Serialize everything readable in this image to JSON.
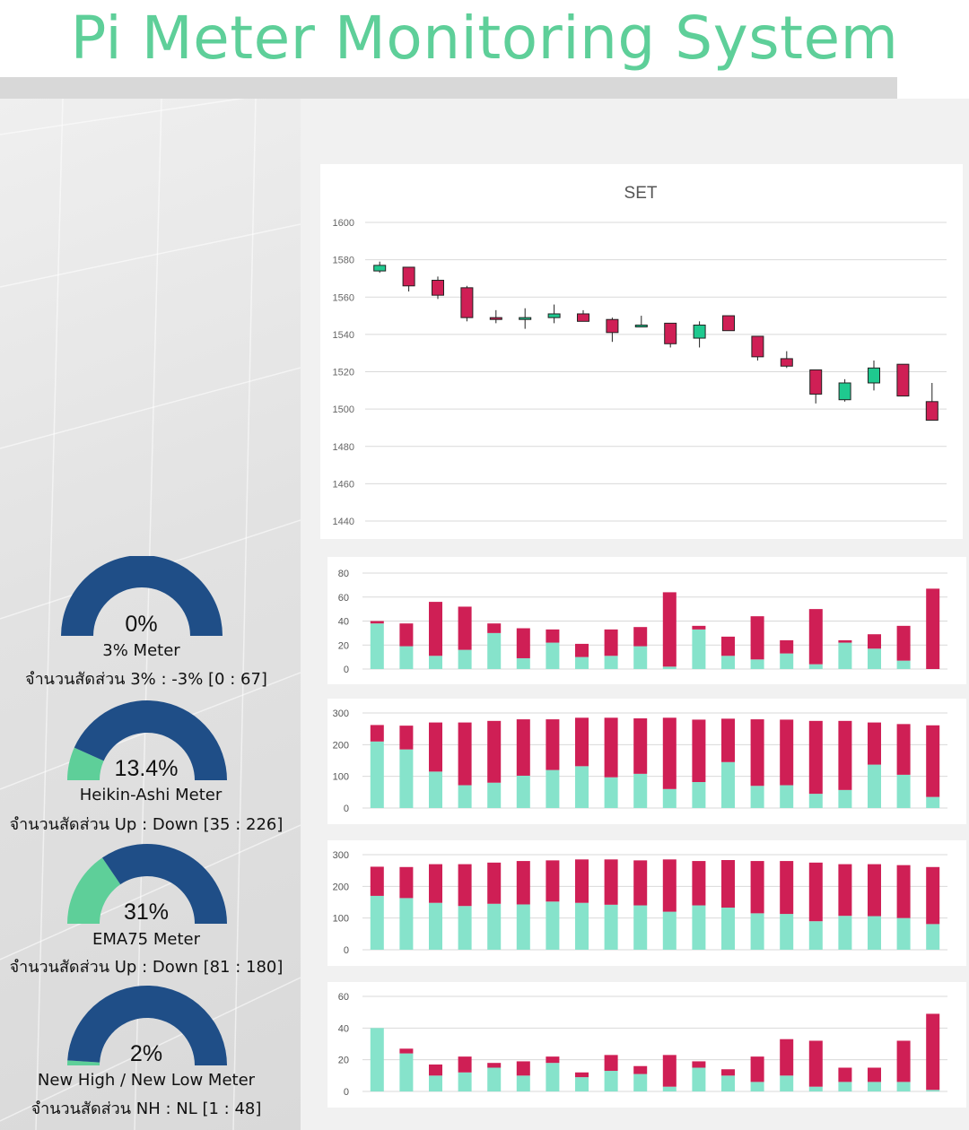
{
  "title": "Pi Meter Monitoring System",
  "colors": {
    "title": "#5ecf99",
    "up": "#1fc98f",
    "down": "#cf1f55",
    "bar_up": "#86e3cb",
    "bar_down": "#cf1f55",
    "gauge_main": "#1f4e87",
    "gauge_fill": "#5ecf99"
  },
  "gauges": [
    {
      "percent": "0%",
      "value": 0.0,
      "name": "3% Meter",
      "ratio": "จำนวนสัดส่วน 3% : -3% [0 : 67]"
    },
    {
      "percent": "13.4%",
      "value": 0.134,
      "name": "Heikin-Ashi Meter",
      "ratio": "จำนวนสัดส่วน Up : Down [35 : 226]"
    },
    {
      "percent": "31%",
      "value": 0.31,
      "name": "EMA75 Meter",
      "ratio": "จำนวนสัดส่วน Up : Down [81 : 180]"
    },
    {
      "percent": "2%",
      "value": 0.02,
      "name": "New High / New Low Meter",
      "ratio": "จำนวนสัดส่วน NH : NL [1 : 48]"
    }
  ],
  "chart_data": [
    {
      "type": "candlestick",
      "title": "SET",
      "ylim": [
        1440,
        1600
      ],
      "yticks": [
        1440,
        1460,
        1480,
        1500,
        1520,
        1540,
        1560,
        1580,
        1600
      ],
      "grid": true,
      "candles": [
        {
          "open": 1574,
          "close": 1577,
          "high": 1579,
          "low": 1573
        },
        {
          "open": 1576,
          "close": 1566,
          "high": 1576,
          "low": 1563
        },
        {
          "open": 1569,
          "close": 1561,
          "high": 1571,
          "low": 1559
        },
        {
          "open": 1565,
          "close": 1549,
          "high": 1566,
          "low": 1547
        },
        {
          "open": 1549,
          "close": 1548,
          "high": 1553,
          "low": 1546
        },
        {
          "open": 1548,
          "close": 1549,
          "high": 1554,
          "low": 1543
        },
        {
          "open": 1549,
          "close": 1551,
          "high": 1556,
          "low": 1546
        },
        {
          "open": 1551,
          "close": 1547,
          "high": 1553,
          "low": 1547
        },
        {
          "open": 1548,
          "close": 1541,
          "high": 1549,
          "low": 1536
        },
        {
          "open": 1544,
          "close": 1545,
          "high": 1550,
          "low": 1544
        },
        {
          "open": 1546,
          "close": 1535,
          "high": 1546,
          "low": 1533
        },
        {
          "open": 1538,
          "close": 1545,
          "high": 1547,
          "low": 1533
        },
        {
          "open": 1550,
          "close": 1542,
          "high": 1550,
          "low": 1542
        },
        {
          "open": 1539,
          "close": 1528,
          "high": 1539,
          "low": 1526
        },
        {
          "open": 1527,
          "close": 1523,
          "high": 1531,
          "low": 1522
        },
        {
          "open": 1521,
          "close": 1508,
          "high": 1521,
          "low": 1503
        },
        {
          "open": 1505,
          "close": 1514,
          "high": 1516,
          "low": 1504
        },
        {
          "open": 1514,
          "close": 1522,
          "high": 1526,
          "low": 1510
        },
        {
          "open": 1524,
          "close": 1507,
          "high": 1524,
          "low": 1507
        },
        {
          "open": 1504,
          "close": 1494,
          "high": 1514,
          "low": 1494
        }
      ]
    },
    {
      "type": "bar",
      "stacked": true,
      "ylim": [
        0,
        80
      ],
      "yticks": [
        0,
        20,
        40,
        60,
        80
      ],
      "grid": true,
      "series": [
        {
          "values": [
            38,
            19,
            11,
            16,
            30,
            9,
            22,
            10,
            11,
            19,
            2,
            33,
            11,
            8,
            13,
            4,
            22,
            17,
            7,
            0
          ]
        },
        {
          "values": [
            2,
            19,
            45,
            36,
            8,
            25,
            11,
            11,
            22,
            16,
            62,
            3,
            16,
            36,
            11,
            46,
            2,
            12,
            29,
            67
          ]
        }
      ]
    },
    {
      "type": "bar",
      "stacked": true,
      "ylim": [
        0,
        300
      ],
      "yticks": [
        0,
        100,
        200,
        300
      ],
      "grid": true,
      "series": [
        {
          "values": [
            210,
            185,
            115,
            72,
            80,
            102,
            120,
            132,
            97,
            108,
            60,
            82,
            145,
            70,
            72,
            45,
            57,
            137,
            105,
            35
          ]
        },
        {
          "values": [
            52,
            75,
            155,
            198,
            195,
            178,
            160,
            153,
            188,
            175,
            225,
            197,
            137,
            210,
            207,
            230,
            218,
            133,
            160,
            226
          ]
        }
      ]
    },
    {
      "type": "bar",
      "stacked": true,
      "ylim": [
        0,
        300
      ],
      "yticks": [
        0,
        100,
        200,
        300
      ],
      "grid": true,
      "series": [
        {
          "values": [
            170,
            163,
            148,
            138,
            145,
            143,
            152,
            148,
            142,
            140,
            120,
            140,
            133,
            115,
            113,
            90,
            107,
            106,
            100,
            81
          ]
        },
        {
          "values": [
            92,
            98,
            122,
            132,
            130,
            137,
            130,
            137,
            143,
            142,
            165,
            140,
            150,
            165,
            167,
            185,
            163,
            164,
            167,
            180
          ]
        }
      ]
    },
    {
      "type": "bar",
      "stacked": true,
      "ylim": [
        0,
        60
      ],
      "yticks": [
        0,
        20,
        40,
        60
      ],
      "grid": true,
      "series": [
        {
          "values": [
            40,
            24,
            10,
            12,
            15,
            10,
            18,
            9,
            13,
            11,
            3,
            15,
            10,
            6,
            10,
            3,
            6,
            6,
            6,
            1
          ]
        },
        {
          "values": [
            0,
            3,
            7,
            10,
            3,
            9,
            4,
            3,
            10,
            5,
            20,
            4,
            4,
            16,
            23,
            29,
            9,
            9,
            26,
            48
          ]
        }
      ]
    }
  ]
}
